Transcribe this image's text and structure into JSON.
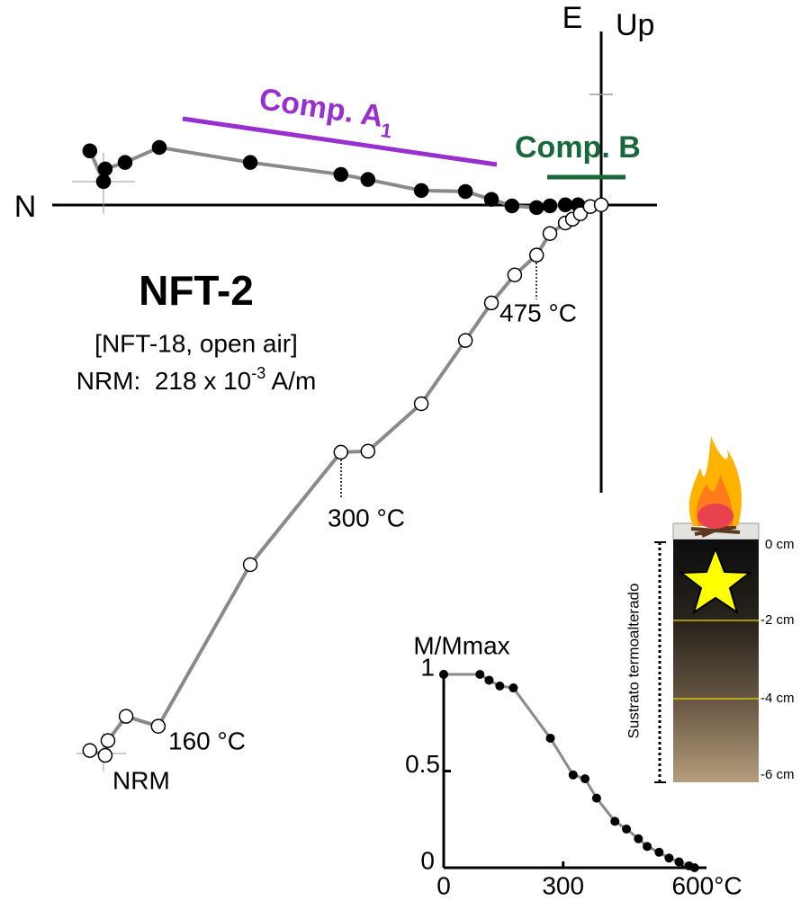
{
  "chart_data": [
    {
      "type": "zijderveld",
      "axis_labels": {
        "left": "N",
        "top": "E",
        "top_right": "Up"
      },
      "components": [
        {
          "name": "Comp. A",
          "subscript": "1",
          "color": "#9a2fcf"
        },
        {
          "name": "Comp. B",
          "color": "#17683a"
        }
      ],
      "specimen": {
        "name": "NFT-2",
        "note": "[NFT-18, open air]",
        "nrm_text": "NRM:  218 x 10",
        "nrm_exponent": "-3",
        "nrm_unit": " A/m"
      },
      "annotations": [
        "475 °C",
        "300 °C",
        "160 °C",
        "NRM"
      ],
      "xlim": [
        -160.5,
        16.3
      ],
      "ylim": [
        -169,
        56
      ],
      "series": [
        {
          "marker": "filled",
          "color": "#000000",
          "line_color": "#8a8a8a",
          "x": [
            -149.5,
            -145.5,
            -145.0,
            -139.2,
            -129.2,
            -102.6,
            -76.1,
            -68.2,
            -52.6,
            -39.7,
            -32.1,
            -26.1,
            -18.9,
            -15.0,
            -10.5,
            -6.8
          ],
          "y": [
            15.8,
            6.8,
            10.5,
            12.4,
            16.8,
            12.4,
            8.9,
            7.4,
            4.2,
            3.9,
            1.6,
            -0.3,
            -0.8,
            -0.3,
            0,
            0
          ]
        },
        {
          "marker": "open",
          "color": "#000000",
          "line_color": "#8a8a8a",
          "x": [
            -149.5,
            -145.0,
            -144.2,
            -138.9,
            -129.5,
            -102.6,
            -76.1,
            -68.2,
            -52.6,
            -39.7,
            -32.1,
            -25.3,
            -18.9,
            -15.0,
            -10.5,
            -8.4,
            -6.1,
            -3.2,
            0
          ],
          "y": [
            -159.7,
            -161.1,
            -156.8,
            -149.7,
            -152.6,
            -105.3,
            -72.4,
            -72.1,
            -58.2,
            -39.7,
            -28.7,
            -20.5,
            -14.7,
            -8.4,
            -5.3,
            -4.2,
            -2.6,
            -0.5,
            0
          ]
        }
      ]
    },
    {
      "type": "line",
      "ylabel": "M/Mmax",
      "xlim": [
        0,
        660
      ],
      "ylim": [
        0,
        1.05
      ],
      "xticks": [
        0,
        300,
        {
          "value": 600,
          "label": "600°C"
        }
      ],
      "yticks": [
        0,
        0.5,
        1
      ],
      "series": [
        {
          "color": "#000000",
          "line_color": "#8a8a8a",
          "x": [
            0,
            91,
            114,
            141,
            175,
            268,
            325,
            355,
            384,
            430,
            459,
            489,
            511,
            541,
            566,
            591,
            616,
            630
          ],
          "values": [
            1.0,
            1.0,
            0.97,
            0.94,
            0.93,
            0.67,
            0.48,
            0.46,
            0.36,
            0.24,
            0.2,
            0.15,
            0.11,
            0.08,
            0.05,
            0.03,
            0.01,
            0.0
          ]
        }
      ]
    }
  ],
  "column": {
    "side_label": "Sustrato termoalterado",
    "depth_labels": [
      "0 cm",
      "-2 cm",
      "-4 cm",
      "-6 cm"
    ]
  }
}
